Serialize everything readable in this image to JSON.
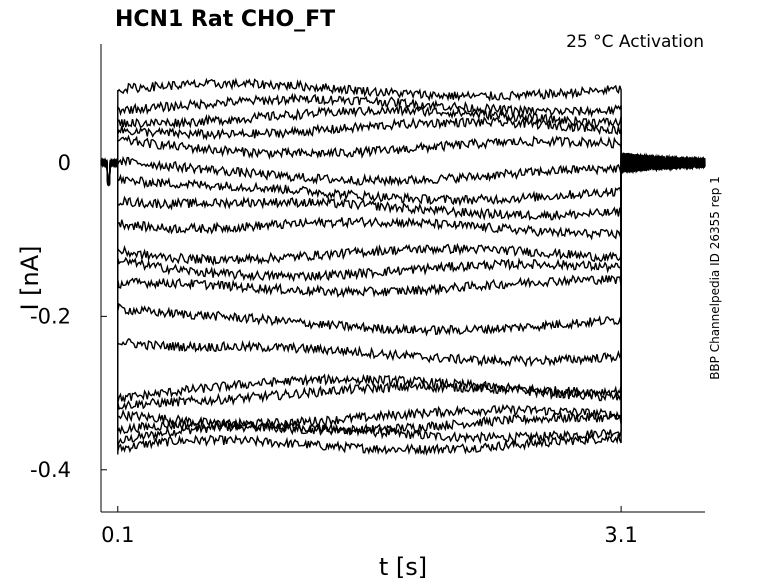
{
  "chart_data": {
    "type": "line",
    "title": "HCN1  Rat  CHO_FT",
    "annotation": "25 °C  Activation",
    "side_label": "BBP Channelpedia ID 26355 rep 1",
    "xlabel": "t [s]",
    "ylabel": "I [nA]",
    "xlim": [
      0.0,
      3.6
    ],
    "ylim": [
      -0.455,
      0.155
    ],
    "x_ticks": [
      {
        "value": 0.1,
        "label": "0.1"
      },
      {
        "value": 3.1,
        "label": "3.1"
      }
    ],
    "y_ticks": [
      {
        "value": 0.0,
        "label": "0"
      },
      {
        "value": -0.2,
        "label": "-0.2"
      },
      {
        "value": -0.4,
        "label": "-0.4"
      }
    ],
    "grid": false,
    "legend": "none",
    "line_color": "#000000",
    "step_start": 0.1,
    "step_end": 3.1,
    "holding_current": 0.0,
    "series": [
      {
        "peak": -0.364,
        "steady": -0.35
      },
      {
        "peak": -0.38,
        "steady": -0.365
      },
      {
        "peak": -0.335,
        "steady": -0.34
      },
      {
        "peak": -0.35,
        "steady": -0.33
      },
      {
        "peak": -0.31,
        "steady": -0.3
      },
      {
        "peak": -0.3,
        "steady": -0.29
      },
      {
        "peak": -0.23,
        "steady": -0.25
      },
      {
        "peak": -0.195,
        "steady": -0.21
      },
      {
        "peak": -0.165,
        "steady": -0.16
      },
      {
        "peak": -0.13,
        "steady": -0.14
      },
      {
        "peak": -0.11,
        "steady": -0.12
      },
      {
        "peak": -0.07,
        "steady": -0.085
      },
      {
        "peak": -0.045,
        "steady": -0.06
      },
      {
        "peak": -0.025,
        "steady": -0.04
      },
      {
        "peak": -0.005,
        "steady": -0.015
      },
      {
        "peak": 0.025,
        "steady": 0.02
      },
      {
        "peak": 0.045,
        "steady": 0.045
      },
      {
        "peak": 0.06,
        "steady": 0.06
      },
      {
        "peak": 0.075,
        "steady": 0.075
      },
      {
        "peak": 0.095,
        "steady": 0.095
      }
    ]
  }
}
